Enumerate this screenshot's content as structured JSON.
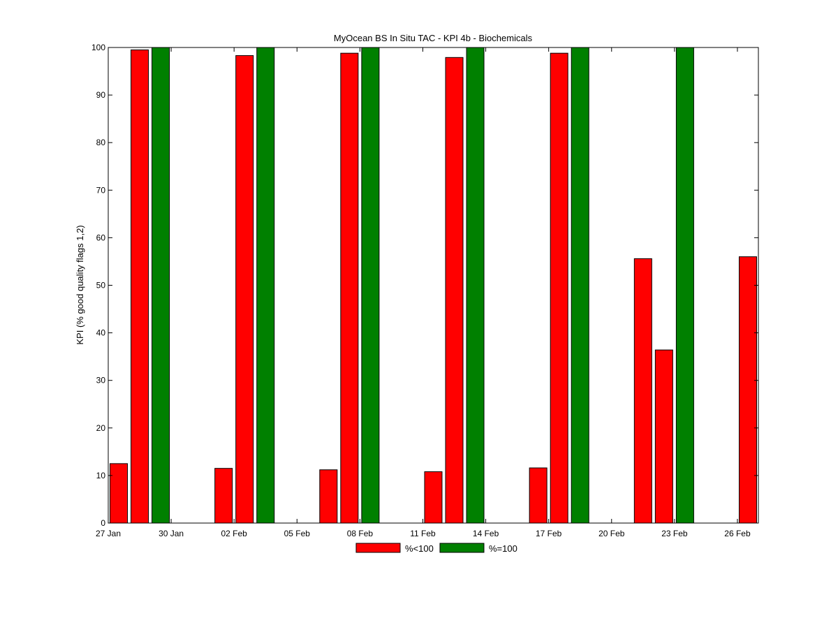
{
  "chart_data": {
    "type": "bar",
    "title": "MyOcean  BS In Situ TAC - KPI 4b - Biochemicals",
    "xlabel": "",
    "ylabel": "KPI (% good quality flags 1,2)",
    "ylim": [
      0,
      100
    ],
    "yticks": [
      0,
      10,
      20,
      30,
      40,
      50,
      60,
      70,
      80,
      90,
      100
    ],
    "xlim": [
      "2013-01-27",
      "2013-02-27"
    ],
    "xticks": [
      {
        "date": "2013-01-27",
        "label": "27 Jan"
      },
      {
        "date": "2013-01-30",
        "label": "30 Jan"
      },
      {
        "date": "2013-02-02",
        "label": "02 Feb"
      },
      {
        "date": "2013-02-05",
        "label": "05 Feb"
      },
      {
        "date": "2013-02-08",
        "label": "08 Feb"
      },
      {
        "date": "2013-02-11",
        "label": "11 Feb"
      },
      {
        "date": "2013-02-14",
        "label": "14 Feb"
      },
      {
        "date": "2013-02-17",
        "label": "17 Feb"
      },
      {
        "date": "2013-02-20",
        "label": "20 Feb"
      },
      {
        "date": "2013-02-23",
        "label": "23 Feb"
      },
      {
        "date": "2013-02-26",
        "label": "26 Feb"
      }
    ],
    "bars": [
      {
        "date": "2013-01-27",
        "value": 12.5,
        "series": "%<100"
      },
      {
        "date": "2013-01-28",
        "value": 99.5,
        "series": "%<100"
      },
      {
        "date": "2013-01-29",
        "value": 100,
        "series": "%=100"
      },
      {
        "date": "2013-02-01",
        "value": 11.5,
        "series": "%<100"
      },
      {
        "date": "2013-02-02",
        "value": 98.3,
        "series": "%<100"
      },
      {
        "date": "2013-02-03",
        "value": 100,
        "series": "%=100"
      },
      {
        "date": "2013-02-06",
        "value": 11.2,
        "series": "%<100"
      },
      {
        "date": "2013-02-07",
        "value": 98.8,
        "series": "%<100"
      },
      {
        "date": "2013-02-08",
        "value": 100,
        "series": "%=100"
      },
      {
        "date": "2013-02-11",
        "value": 10.8,
        "series": "%<100"
      },
      {
        "date": "2013-02-12",
        "value": 97.9,
        "series": "%<100"
      },
      {
        "date": "2013-02-13",
        "value": 100,
        "series": "%=100"
      },
      {
        "date": "2013-02-16",
        "value": 11.6,
        "series": "%<100"
      },
      {
        "date": "2013-02-17",
        "value": 98.8,
        "series": "%<100"
      },
      {
        "date": "2013-02-18",
        "value": 100,
        "series": "%=100"
      },
      {
        "date": "2013-02-21",
        "value": 55.6,
        "series": "%<100"
      },
      {
        "date": "2013-02-22",
        "value": 36.4,
        "series": "%<100"
      },
      {
        "date": "2013-02-23",
        "value": 100,
        "series": "%=100"
      },
      {
        "date": "2013-02-26",
        "value": 56.0,
        "series": "%<100"
      }
    ],
    "series": [
      {
        "name": "%<100",
        "color": "#ff0000"
      },
      {
        "name": "%=100",
        "color": "#008000"
      }
    ],
    "legend_position": "bottom-center",
    "grid": false
  }
}
